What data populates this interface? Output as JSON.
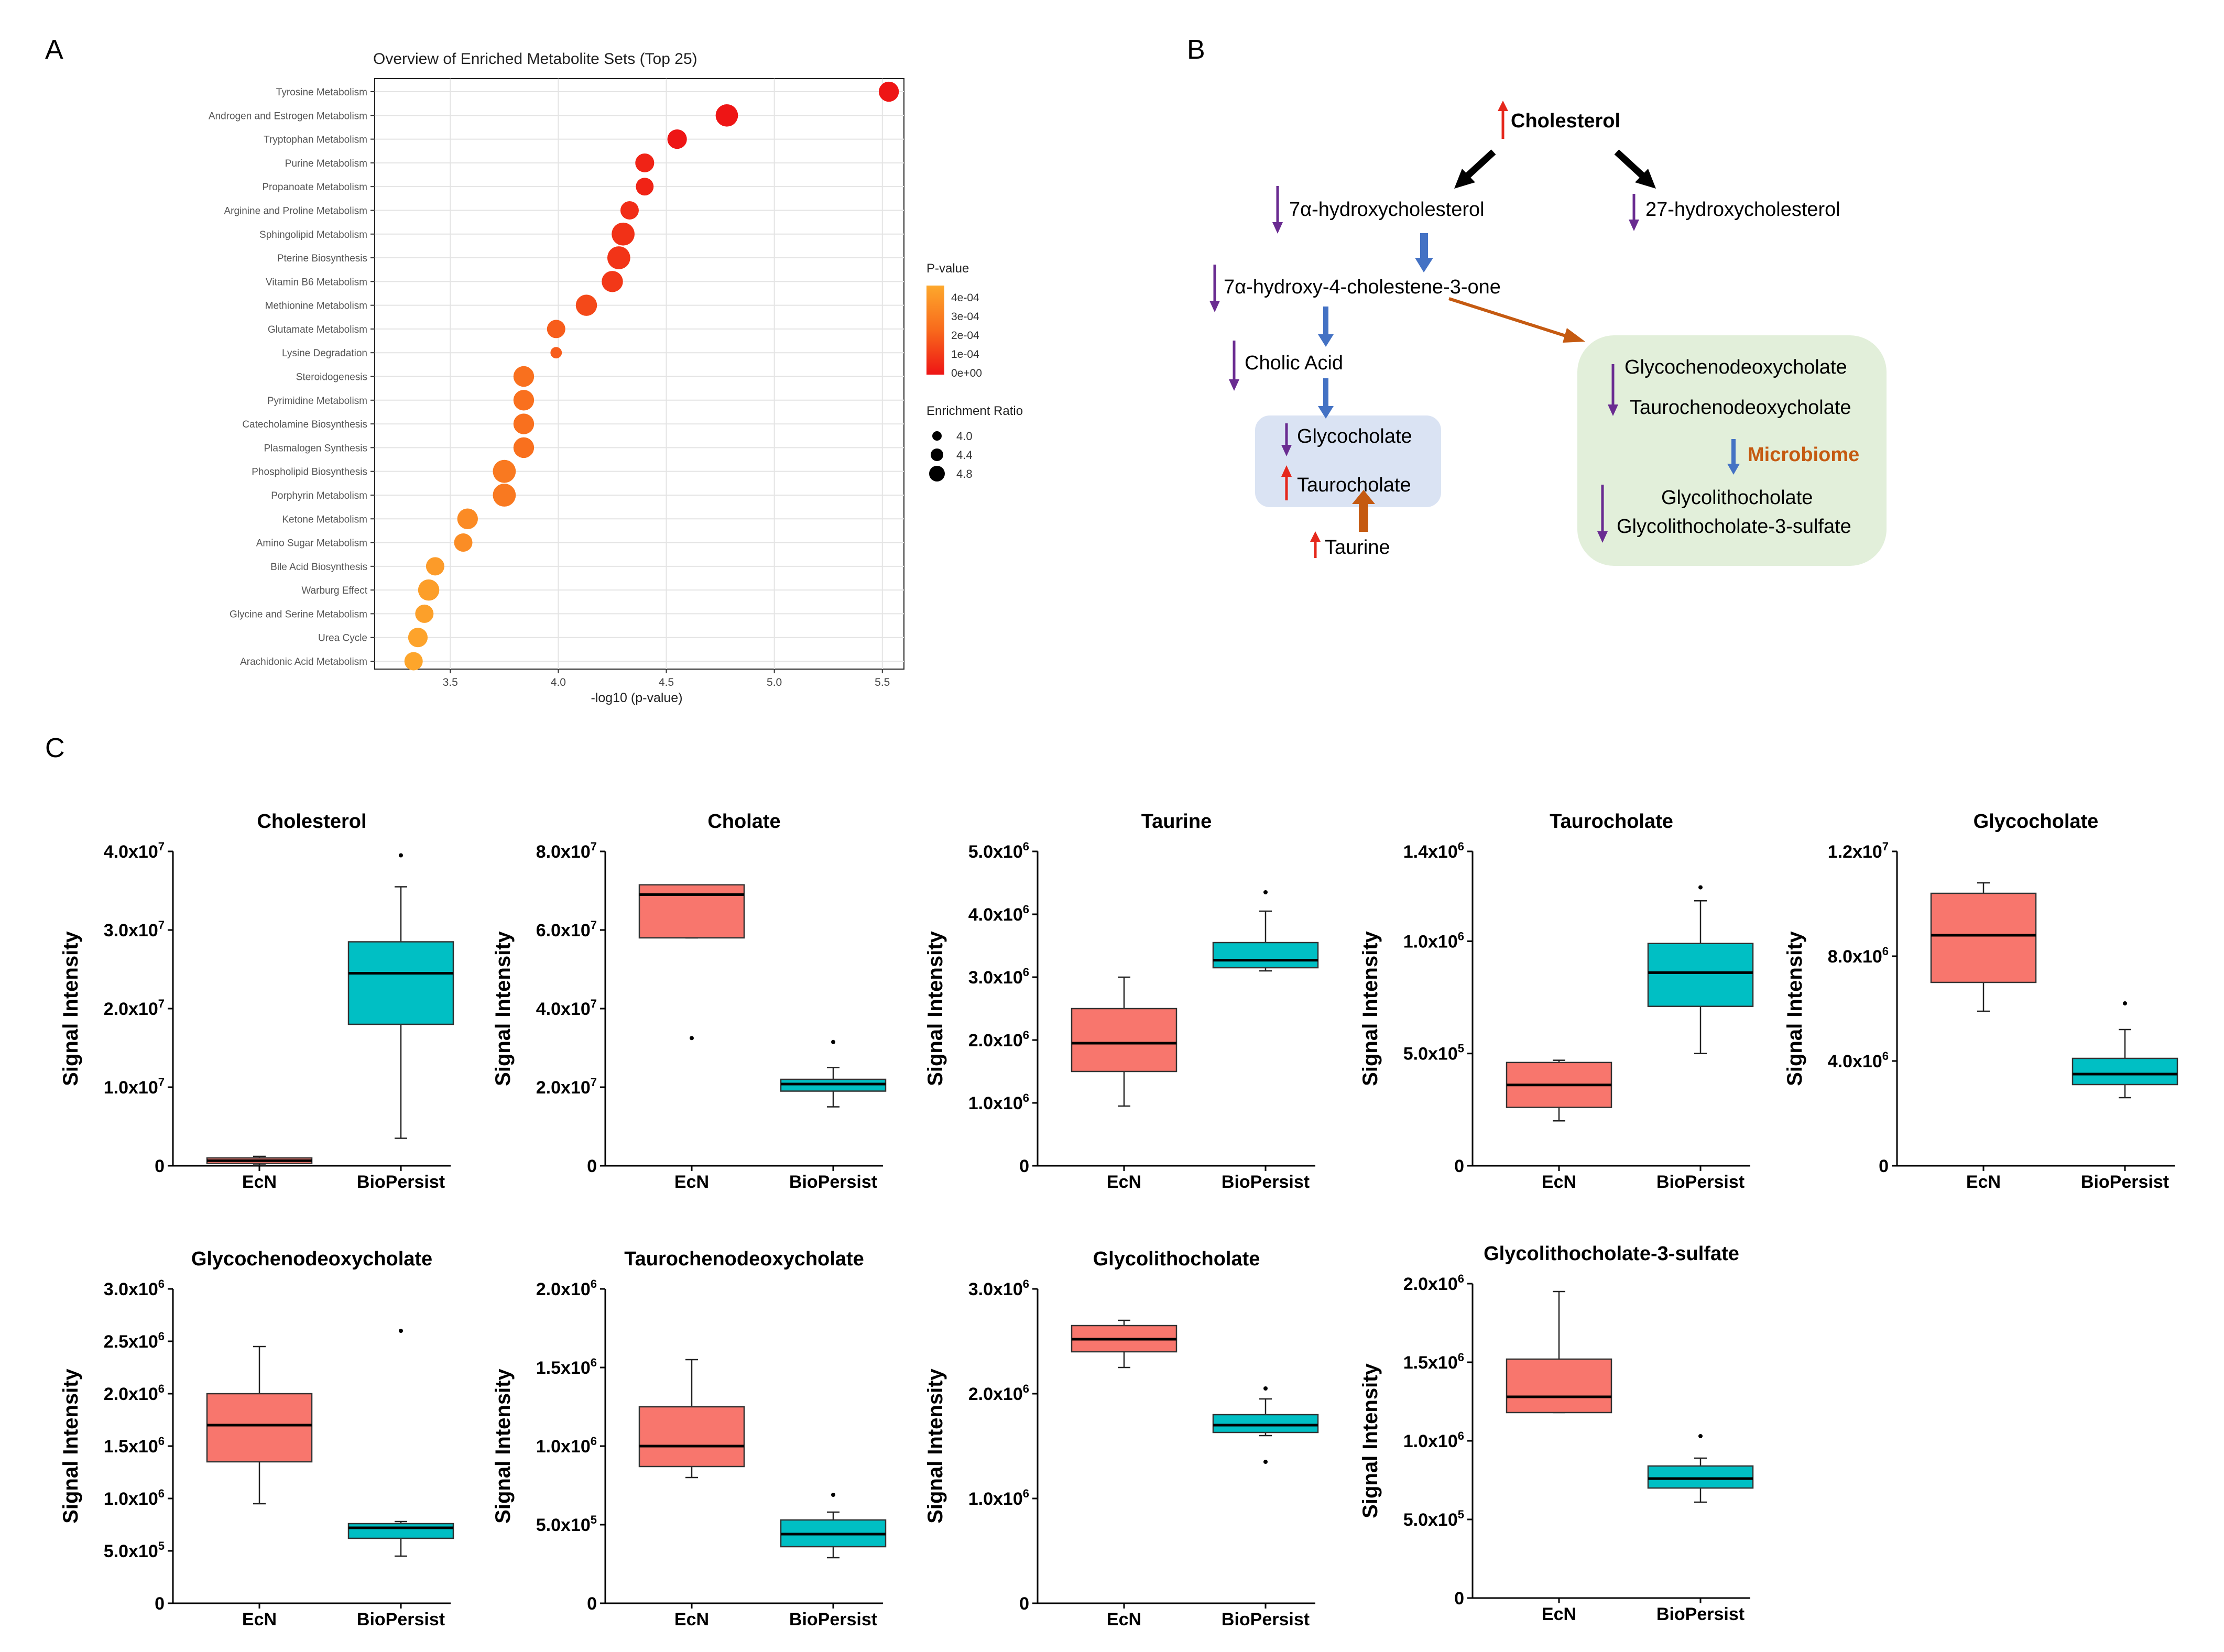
{
  "panels": {
    "a": "A",
    "b": "B",
    "c": "C"
  },
  "colors": {
    "ecn": "#f8766d",
    "biopersist": "#00bfc4",
    "purple": "#6a2c91",
    "blue": "#4472c4",
    "red": "#e5281c",
    "orange": "#c55a11",
    "blue_box": "#dae3f3",
    "green_box": "#e2efda"
  },
  "chart_data": [
    {
      "type": "scatter",
      "id": "enrichment",
      "title": "Overview of Enriched Metabolite Sets (Top 25)",
      "xlabel": "-log10 (p-value)",
      "xlim": [
        3.15,
        5.6
      ],
      "xticks": [
        3.5,
        4.0,
        4.5,
        5.0,
        5.5
      ],
      "xtick_labels": [
        "3.5",
        "4.0",
        "4.5",
        "5.0",
        "5.5"
      ],
      "categories": [
        "Tyrosine Metabolism",
        "Androgen and Estrogen Metabolism",
        "Tryptophan Metabolism",
        "Purine Metabolism",
        "Propanoate Metabolism",
        "Arginine and Proline Metabolism",
        "Sphingolipid Metabolism",
        "Pterine Biosynthesis",
        "Vitamin B6 Metabolism",
        "Methionine Metabolism",
        "Glutamate Metabolism",
        "Lysine Degradation",
        "Steroidogenesis",
        "Pyrimidine Metabolism",
        "Catecholamine Biosynthesis",
        "Plasmalogen Synthesis",
        "Phospholipid Biosynthesis",
        "Porphyrin Metabolism",
        "Ketone Metabolism",
        "Amino Sugar Metabolism",
        "Bile Acid Biosynthesis",
        "Warburg Effect",
        "Glycine and Serine Metabolism",
        "Urea Cycle",
        "Arachidonic Acid Metabolism"
      ],
      "x": [
        5.53,
        4.78,
        4.55,
        4.4,
        4.4,
        4.33,
        4.3,
        4.28,
        4.25,
        4.13,
        3.99,
        3.99,
        3.84,
        3.84,
        3.84,
        3.84,
        3.75,
        3.75,
        3.58,
        3.56,
        3.43,
        3.4,
        3.38,
        3.35,
        3.33
      ],
      "enrichment_ratio": [
        4.65,
        4.85,
        4.6,
        4.55,
        4.45,
        4.5,
        4.9,
        4.9,
        4.75,
        4.75,
        4.5,
        3.9,
        4.7,
        4.7,
        4.7,
        4.7,
        4.9,
        4.9,
        4.7,
        4.5,
        4.5,
        4.75,
        4.5,
        4.6,
        4.5
      ],
      "p_value_legend": {
        "title": "P-value",
        "labels": [
          "4e-04",
          "3e-04",
          "2e-04",
          "1e-04",
          "0e+00"
        ]
      },
      "size_legend": {
        "title": "Enrichment Ratio",
        "labels": [
          "4.0",
          "4.4",
          "4.8"
        ]
      }
    },
    {
      "type": "box",
      "id": "cholesterol",
      "title": "Cholesterol",
      "ylabel": "Signal Intensity",
      "categories": [
        "EcN",
        "BioPersist"
      ],
      "ylim": [
        0,
        40000000
      ],
      "ytick_values": [
        0,
        10000000,
        20000000,
        30000000,
        40000000
      ],
      "ytick_labels": [
        [
          "0",
          ""
        ],
        [
          "1.0x10",
          "7"
        ],
        [
          "2.0x10",
          "7"
        ],
        [
          "3.0x10",
          "7"
        ],
        [
          "4.0x10",
          "7"
        ]
      ],
      "boxes": [
        {
          "q1": 300000,
          "median": 650000,
          "q3": 1000000,
          "whislo": 100000,
          "whishi": 1200000,
          "fliers": []
        },
        {
          "q1": 18000000,
          "median": 24500000,
          "q3": 28500000,
          "whislo": 3500000,
          "whishi": 35500000,
          "fliers": [
            39500000
          ]
        }
      ]
    },
    {
      "type": "box",
      "id": "cholate",
      "title": "Cholate",
      "ylabel": "Signal Intensity",
      "categories": [
        "EcN",
        "BioPersist"
      ],
      "ylim": [
        0,
        80000000
      ],
      "ytick_values": [
        0,
        20000000,
        40000000,
        60000000,
        80000000
      ],
      "ytick_labels": [
        [
          "0",
          ""
        ],
        [
          "2.0x10",
          "7"
        ],
        [
          "4.0x10",
          "7"
        ],
        [
          "6.0x10",
          "7"
        ],
        [
          "8.0x10",
          "7"
        ]
      ],
      "boxes": [
        {
          "q1": 58000000,
          "median": 69000000,
          "q3": 71500000,
          "whislo": 58000000,
          "whishi": 71500000,
          "fliers": [
            32500000
          ]
        },
        {
          "q1": 19000000,
          "median": 20800000,
          "q3": 22000000,
          "whislo": 15000000,
          "whishi": 25000000,
          "fliers": [
            31500000
          ]
        }
      ]
    },
    {
      "type": "box",
      "id": "taurine",
      "title": "Taurine",
      "ylabel": "Signal Intensity",
      "categories": [
        "EcN",
        "BioPersist"
      ],
      "ylim": [
        0,
        5000000
      ],
      "ytick_values": [
        0,
        1000000,
        2000000,
        3000000,
        4000000,
        5000000
      ],
      "ytick_labels": [
        [
          "0",
          ""
        ],
        [
          "1.0x10",
          "6"
        ],
        [
          "2.0x10",
          "6"
        ],
        [
          "3.0x10",
          "6"
        ],
        [
          "4.0x10",
          "6"
        ],
        [
          "5.0x10",
          "6"
        ]
      ],
      "boxes": [
        {
          "q1": 1500000,
          "median": 1950000,
          "q3": 2500000,
          "whislo": 950000,
          "whishi": 3000000,
          "fliers": []
        },
        {
          "q1": 3150000,
          "median": 3270000,
          "q3": 3550000,
          "whislo": 3100000,
          "whishi": 4050000,
          "fliers": [
            4350000
          ]
        }
      ]
    },
    {
      "type": "box",
      "id": "taurocholate",
      "title": "Taurocholate",
      "ylabel": "Signal Intensity",
      "categories": [
        "EcN",
        "BioPersist"
      ],
      "ylim": [
        0,
        1400000
      ],
      "ytick_values": [
        0,
        500000,
        1000000,
        1400000
      ],
      "ytick_labels": [
        [
          "0",
          ""
        ],
        [
          "5.0x10",
          "5"
        ],
        [
          "1.0x10",
          "6"
        ],
        [
          "1.4x10",
          "6"
        ]
      ],
      "boxes": [
        {
          "q1": 260000,
          "median": 360000,
          "q3": 460000,
          "whislo": 200000,
          "whishi": 470000,
          "fliers": []
        },
        {
          "q1": 710000,
          "median": 860000,
          "q3": 990000,
          "whislo": 500000,
          "whishi": 1180000,
          "fliers": [
            1240000
          ]
        }
      ]
    },
    {
      "type": "box",
      "id": "glycocholate",
      "title": "Glycocholate",
      "ylabel": "Signal Intensity",
      "categories": [
        "EcN",
        "BioPersist"
      ],
      "ylim": [
        0,
        12000000
      ],
      "ytick_values": [
        0,
        4000000,
        8000000,
        12000000
      ],
      "ytick_labels": [
        [
          "0",
          ""
        ],
        [
          "4.0x10",
          "6"
        ],
        [
          "8.0x10",
          "6"
        ],
        [
          "1.2x10",
          "7"
        ]
      ],
      "boxes": [
        {
          "q1": 7000000,
          "median": 8800000,
          "q3": 10400000,
          "whislo": 5900000,
          "whishi": 10800000,
          "fliers": []
        },
        {
          "q1": 3100000,
          "median": 3500000,
          "q3": 4100000,
          "whislo": 2600000,
          "whishi": 5200000,
          "fliers": [
            6200000
          ]
        }
      ]
    },
    {
      "type": "box",
      "id": "glycochenodeoxycholate",
      "title": "Glycochenodeoxycholate",
      "ylabel": "Signal Intensity",
      "categories": [
        "EcN",
        "BioPersist"
      ],
      "ylim": [
        0,
        3000000
      ],
      "ytick_values": [
        0,
        500000,
        1000000,
        1500000,
        2000000,
        2500000,
        3000000
      ],
      "ytick_labels": [
        [
          "0",
          ""
        ],
        [
          "5.0x10",
          "5"
        ],
        [
          "1.0x10",
          "6"
        ],
        [
          "1.5x10",
          "6"
        ],
        [
          "2.0x10",
          "6"
        ],
        [
          "2.5x10",
          "6"
        ],
        [
          "3.0x10",
          "6"
        ]
      ],
      "boxes": [
        {
          "q1": 1350000,
          "median": 1700000,
          "q3": 2000000,
          "whislo": 950000,
          "whishi": 2450000,
          "fliers": []
        },
        {
          "q1": 620000,
          "median": 720000,
          "q3": 760000,
          "whislo": 450000,
          "whishi": 780000,
          "fliers": [
            2600000
          ]
        }
      ]
    },
    {
      "type": "box",
      "id": "taurochenodeoxycholate",
      "title": "Taurochenodeoxycholate",
      "ylabel": "Signal Intensity",
      "categories": [
        "EcN",
        "BioPersist"
      ],
      "ylim": [
        0,
        2000000
      ],
      "ytick_values": [
        0,
        500000,
        1000000,
        1500000,
        2000000
      ],
      "ytick_labels": [
        [
          "0",
          ""
        ],
        [
          "5.0x10",
          "5"
        ],
        [
          "1.0x10",
          "6"
        ],
        [
          "1.5x10",
          "6"
        ],
        [
          "2.0x10",
          "6"
        ]
      ],
      "boxes": [
        {
          "q1": 870000,
          "median": 1000000,
          "q3": 1250000,
          "whislo": 800000,
          "whishi": 1550000,
          "fliers": []
        },
        {
          "q1": 360000,
          "median": 440000,
          "q3": 530000,
          "whislo": 290000,
          "whishi": 580000,
          "fliers": [
            690000
          ]
        }
      ]
    },
    {
      "type": "box",
      "id": "glycolithocholate",
      "title": "Glycolithocholate",
      "ylabel": "Signal Intensity",
      "categories": [
        "EcN",
        "BioPersist"
      ],
      "ylim": [
        0,
        3000000
      ],
      "ytick_values": [
        0,
        1000000,
        2000000,
        3000000
      ],
      "ytick_labels": [
        [
          "0",
          ""
        ],
        [
          "1.0x10",
          "6"
        ],
        [
          "2.0x10",
          "6"
        ],
        [
          "3.0x10",
          "6"
        ]
      ],
      "boxes": [
        {
          "q1": 2400000,
          "median": 2520000,
          "q3": 2650000,
          "whislo": 2250000,
          "whishi": 2700000,
          "fliers": []
        },
        {
          "q1": 1630000,
          "median": 1700000,
          "q3": 1800000,
          "whislo": 1600000,
          "whishi": 1950000,
          "fliers": [
            2050000,
            1350000
          ]
        }
      ]
    },
    {
      "type": "box",
      "id": "glycolithocholate_3_sulfate",
      "title": "Glycolithocholate-3-sulfate",
      "ylabel": "Signal Intensity",
      "categories": [
        "EcN",
        "BioPersist"
      ],
      "ylim": [
        0,
        2000000
      ],
      "ytick_values": [
        0,
        500000,
        1000000,
        1500000,
        2000000
      ],
      "ytick_labels": [
        [
          "0",
          ""
        ],
        [
          "5.0x10",
          "5"
        ],
        [
          "1.0x10",
          "6"
        ],
        [
          "1.5x10",
          "6"
        ],
        [
          "2.0x10",
          "6"
        ]
      ],
      "boxes": [
        {
          "q1": 1180000,
          "median": 1280000,
          "q3": 1520000,
          "whislo": 1180000,
          "whishi": 1950000,
          "fliers": []
        },
        {
          "q1": 700000,
          "median": 760000,
          "q3": 840000,
          "whislo": 610000,
          "whishi": 890000,
          "fliers": [
            1030000
          ]
        }
      ]
    }
  ],
  "pathway": {
    "cholesterol": "Cholesterol",
    "hydroxy7": "7α-hydroxycholesterol",
    "hydroxy27": "27-hydroxycholesterol",
    "cholestenone": "7α-hydroxy-4-cholestene-3-one",
    "cholic_acid": "Cholic Acid",
    "glycocholate": "Glycocholate",
    "taurocholate": "Taurocholate",
    "taurine": "Taurine",
    "gcdca": "Glycochenodeoxycholate",
    "tcdca": "Taurochenodeoxycholate",
    "microbiome": "Microbiome",
    "glca": "Glycolithocholate",
    "glca3s": "Glycolithocholate-3-sulfate"
  }
}
